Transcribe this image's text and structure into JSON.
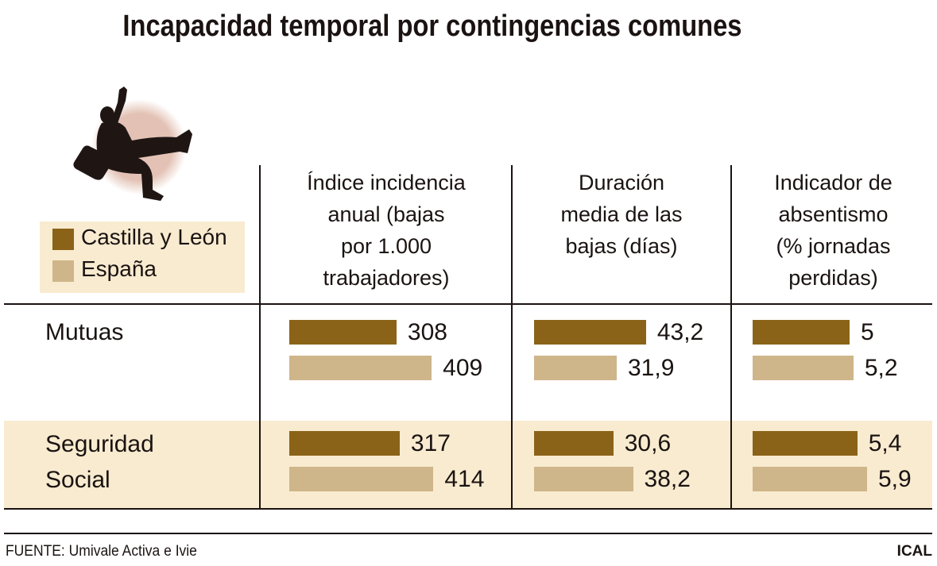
{
  "chart_data": {
    "type": "bar",
    "title": "Incapacidad temporal por contingencias comunes",
    "orientation": "horizontal",
    "legend": {
      "placement": "left",
      "entries": [
        "Castilla y León",
        "España"
      ]
    },
    "colors": {
      "Castilla y León": "#8b6318",
      "España": "#cfb58a",
      "highlight_row": "#f8ebd0"
    },
    "rows": [
      "Mutuas",
      "Seguridad\nSocial"
    ],
    "panels": [
      {
        "header": "Índice incidencia\nanual (bajas\npor 1.000\ntrabajadores)",
        "series": [
          {
            "name": "Castilla y León",
            "values": [
              308,
              317
            ],
            "labels": [
              "308",
              "317"
            ]
          },
          {
            "name": "España",
            "values": [
              409,
              414
            ],
            "labels": [
              "409",
              "414"
            ]
          }
        ]
      },
      {
        "header": "Duración\nmedia de las\nbajas (días)",
        "series": [
          {
            "name": "Castilla y León",
            "values": [
              43.2,
              30.6
            ],
            "labels": [
              "43,2",
              "30,6"
            ]
          },
          {
            "name": "España",
            "values": [
              31.9,
              38.2
            ],
            "labels": [
              "31,9",
              "38,2"
            ]
          }
        ]
      },
      {
        "header": "Indicador de\nabsentismo\n(% jornadas\nperdidas)",
        "series": [
          {
            "name": "Castilla y León",
            "values": [
              5,
              5.4
            ],
            "labels": [
              "5",
              "5,4"
            ]
          },
          {
            "name": "España",
            "values": [
              5.2,
              5.9
            ],
            "labels": [
              "5,2",
              "5,9"
            ]
          }
        ]
      }
    ]
  },
  "footer": {
    "source": "FUENTE: Umivale Activa e Ivie",
    "credit": "ICAL"
  },
  "illustration": "falling-businessman-icon"
}
